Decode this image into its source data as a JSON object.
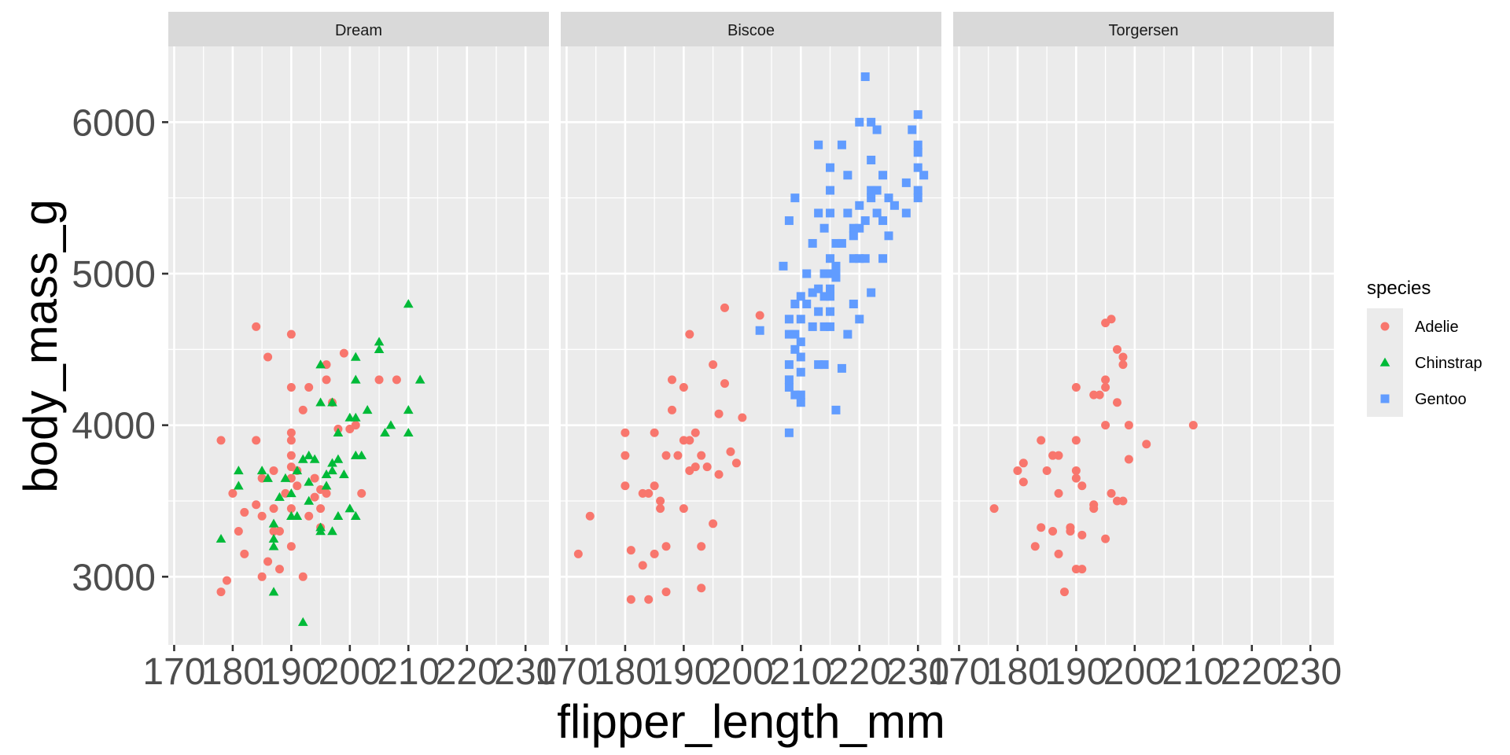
{
  "chart_data": {
    "type": "scatter",
    "facet_variable": "island",
    "panels": [
      "Dream",
      "Biscoe",
      "Torgersen"
    ],
    "xlabel": "flipper_length_mm",
    "ylabel": "body_mass_g",
    "xlim": [
      169,
      234
    ],
    "ylim": [
      2550,
      6500
    ],
    "x_ticks": [
      170,
      180,
      190,
      200,
      210,
      220,
      230
    ],
    "x_tick_labels": [
      "170",
      "180",
      "190",
      "200",
      "210",
      "220",
      "230"
    ],
    "y_ticks": [
      3000,
      4000,
      5000,
      6000
    ],
    "y_tick_labels": [
      "3000",
      "4000",
      "5000",
      "6000"
    ],
    "grid": true,
    "legend": {
      "title": "species",
      "position": "right",
      "entries": [
        {
          "name": "Adelie",
          "color": "#F8766D",
          "shape": "circle"
        },
        {
          "name": "Chinstrap",
          "color": "#00BA38",
          "shape": "triangle"
        },
        {
          "name": "Gentoo",
          "color": "#619CFF",
          "shape": "square"
        }
      ]
    },
    "series": [
      {
        "name": "Adelie",
        "panel": "Dream",
        "points": [
          [
            178,
            3900
          ],
          [
            178,
            2900
          ],
          [
            179,
            2975
          ],
          [
            180,
            3550
          ],
          [
            181,
            3300
          ],
          [
            182,
            3150
          ],
          [
            182,
            3425
          ],
          [
            184,
            4650
          ],
          [
            184,
            3900
          ],
          [
            184,
            3475
          ],
          [
            185,
            3650
          ],
          [
            185,
            3400
          ],
          [
            185,
            3000
          ],
          [
            186,
            4450
          ],
          [
            186,
            3100
          ],
          [
            187,
            3700
          ],
          [
            187,
            3450
          ],
          [
            187,
            3300
          ],
          [
            188,
            3050
          ],
          [
            188,
            3300
          ],
          [
            189,
            3550
          ],
          [
            190,
            3950
          ],
          [
            190,
            3650
          ],
          [
            190,
            3450
          ],
          [
            190,
            4600
          ],
          [
            190,
            4250
          ],
          [
            190,
            3900
          ],
          [
            190,
            3725
          ],
          [
            190,
            3800
          ],
          [
            190,
            3200
          ],
          [
            191,
            3700
          ],
          [
            191,
            3600
          ],
          [
            192,
            3000
          ],
          [
            192,
            4100
          ],
          [
            193,
            4250
          ],
          [
            193,
            3400
          ],
          [
            194,
            3650
          ],
          [
            194,
            3525
          ],
          [
            195,
            3450
          ],
          [
            195,
            3325
          ],
          [
            195,
            3575
          ],
          [
            196,
            4400
          ],
          [
            196,
            4300
          ],
          [
            196,
            3550
          ],
          [
            197,
            4150
          ],
          [
            198,
            3975
          ],
          [
            199,
            4475
          ],
          [
            200,
            3975
          ],
          [
            201,
            4000
          ],
          [
            202,
            3550
          ],
          [
            205,
            4300
          ],
          [
            208,
            4300
          ]
        ]
      },
      {
        "name": "Chinstrap",
        "panel": "Dream",
        "points": [
          [
            178,
            3250
          ],
          [
            181,
            3600
          ],
          [
            181,
            3700
          ],
          [
            185,
            3700
          ],
          [
            186,
            3650
          ],
          [
            187,
            3350
          ],
          [
            187,
            3250
          ],
          [
            187,
            3200
          ],
          [
            187,
            2900
          ],
          [
            188,
            3525
          ],
          [
            189,
            3650
          ],
          [
            190,
            3400
          ],
          [
            190,
            3550
          ],
          [
            191,
            3400
          ],
          [
            191,
            3700
          ],
          [
            192,
            3775
          ],
          [
            192,
            2700
          ],
          [
            193,
            3800
          ],
          [
            193,
            3625
          ],
          [
            193,
            3500
          ],
          [
            194,
            3775
          ],
          [
            195,
            4400
          ],
          [
            195,
            3300
          ],
          [
            195,
            3325
          ],
          [
            195,
            4150
          ],
          [
            196,
            3675
          ],
          [
            196,
            3600
          ],
          [
            197,
            3300
          ],
          [
            197,
            3750
          ],
          [
            197,
            3700
          ],
          [
            197,
            4150
          ],
          [
            198,
            3950
          ],
          [
            198,
            3400
          ],
          [
            198,
            3775
          ],
          [
            199,
            3675
          ],
          [
            200,
            4050
          ],
          [
            200,
            3450
          ],
          [
            201,
            4450
          ],
          [
            201,
            4300
          ],
          [
            201,
            4050
          ],
          [
            201,
            3800
          ],
          [
            201,
            3400
          ],
          [
            202,
            3800
          ],
          [
            203,
            4100
          ],
          [
            205,
            4550
          ],
          [
            205,
            4500
          ],
          [
            206,
            3950
          ],
          [
            207,
            4000
          ],
          [
            210,
            4800
          ],
          [
            210,
            4100
          ],
          [
            210,
            3950
          ],
          [
            212,
            4300
          ]
        ]
      },
      {
        "name": "Adelie",
        "panel": "Biscoe",
        "points": [
          [
            172,
            3150
          ],
          [
            174,
            3400
          ],
          [
            180,
            3950
          ],
          [
            180,
            3800
          ],
          [
            180,
            3600
          ],
          [
            181,
            3175
          ],
          [
            181,
            2850
          ],
          [
            183,
            3075
          ],
          [
            183,
            3550
          ],
          [
            184,
            2850
          ],
          [
            184,
            3550
          ],
          [
            185,
            3600
          ],
          [
            185,
            3150
          ],
          [
            185,
            3950
          ],
          [
            186,
            3500
          ],
          [
            186,
            3450
          ],
          [
            187,
            3800
          ],
          [
            187,
            3200
          ],
          [
            187,
            2900
          ],
          [
            188,
            4300
          ],
          [
            188,
            4100
          ],
          [
            189,
            3800
          ],
          [
            190,
            4250
          ],
          [
            190,
            3900
          ],
          [
            190,
            3450
          ],
          [
            191,
            4600
          ],
          [
            191,
            3900
          ],
          [
            191,
            3700
          ],
          [
            192,
            3725
          ],
          [
            192,
            3950
          ],
          [
            193,
            2925
          ],
          [
            193,
            3200
          ],
          [
            193,
            3800
          ],
          [
            194,
            3725
          ],
          [
            195,
            4400
          ],
          [
            195,
            3350
          ],
          [
            196,
            3675
          ],
          [
            196,
            4075
          ],
          [
            197,
            4775
          ],
          [
            197,
            4275
          ],
          [
            198,
            3825
          ],
          [
            199,
            3750
          ],
          [
            200,
            4050
          ],
          [
            203,
            4725
          ]
        ]
      },
      {
        "name": "Gentoo",
        "panel": "Biscoe",
        "points": [
          [
            203,
            4625
          ],
          [
            207,
            5050
          ],
          [
            208,
            4250
          ],
          [
            208,
            4300
          ],
          [
            208,
            4400
          ],
          [
            208,
            4600
          ],
          [
            208,
            4700
          ],
          [
            208,
            5350
          ],
          [
            208,
            3950
          ],
          [
            209,
            5500
          ],
          [
            209,
            4600
          ],
          [
            209,
            4500
          ],
          [
            209,
            4200
          ],
          [
            209,
            4800
          ],
          [
            210,
            4150
          ],
          [
            210,
            4350
          ],
          [
            210,
            4450
          ],
          [
            210,
            4700
          ],
          [
            210,
            4850
          ],
          [
            210,
            4200
          ],
          [
            210,
            4550
          ],
          [
            211,
            5000
          ],
          [
            211,
            4800
          ],
          [
            212,
            4875
          ],
          [
            212,
            4650
          ],
          [
            212,
            5200
          ],
          [
            213,
            4900
          ],
          [
            213,
            4750
          ],
          [
            213,
            5850
          ],
          [
            213,
            5400
          ],
          [
            213,
            4400
          ],
          [
            214,
            5000
          ],
          [
            214,
            4650
          ],
          [
            214,
            5300
          ],
          [
            214,
            4850
          ],
          [
            214,
            4400
          ],
          [
            215,
            4850
          ],
          [
            215,
            5000
          ],
          [
            215,
            5700
          ],
          [
            215,
            5400
          ],
          [
            215,
            4750
          ],
          [
            215,
            5550
          ],
          [
            215,
            5100
          ],
          [
            215,
            4650
          ],
          [
            215,
            4900
          ],
          [
            216,
            5050
          ],
          [
            216,
            4975
          ],
          [
            216,
            4100
          ],
          [
            216,
            5000
          ],
          [
            216,
            5200
          ],
          [
            217,
            5850
          ],
          [
            217,
            4375
          ],
          [
            217,
            5200
          ],
          [
            218,
            5400
          ],
          [
            218,
            4600
          ],
          [
            218,
            5650
          ],
          [
            219,
            4800
          ],
          [
            219,
            5300
          ],
          [
            219,
            5100
          ],
          [
            219,
            5250
          ],
          [
            220,
            6000
          ],
          [
            220,
            4700
          ],
          [
            220,
            5300
          ],
          [
            220,
            5450
          ],
          [
            220,
            5100
          ],
          [
            221,
            6300
          ],
          [
            221,
            5100
          ],
          [
            221,
            5350
          ],
          [
            222,
            6000
          ],
          [
            222,
            5750
          ],
          [
            222,
            4875
          ],
          [
            222,
            5550
          ],
          [
            222,
            5500
          ],
          [
            223,
            5950
          ],
          [
            223,
            5550
          ],
          [
            223,
            5400
          ],
          [
            224,
            5100
          ],
          [
            224,
            5350
          ],
          [
            224,
            5650
          ],
          [
            225,
            5250
          ],
          [
            225,
            5500
          ],
          [
            226,
            5450
          ],
          [
            228,
            5600
          ],
          [
            228,
            5400
          ],
          [
            229,
            5950
          ],
          [
            230,
            5800
          ],
          [
            230,
            6050
          ],
          [
            230,
            5700
          ],
          [
            230,
            5550
          ],
          [
            230,
            5500
          ],
          [
            230,
            5850
          ],
          [
            231,
            5650
          ]
        ]
      },
      {
        "name": "Adelie",
        "panel": "Torgersen",
        "points": [
          [
            176,
            3450
          ],
          [
            180,
            3700
          ],
          [
            181,
            3750
          ],
          [
            181,
            3625
          ],
          [
            183,
            3200
          ],
          [
            184,
            3900
          ],
          [
            184,
            3325
          ],
          [
            185,
            3700
          ],
          [
            186,
            3800
          ],
          [
            186,
            3300
          ],
          [
            187,
            3150
          ],
          [
            187,
            3800
          ],
          [
            187,
            3550
          ],
          [
            188,
            2900
          ],
          [
            189,
            3325
          ],
          [
            189,
            3300
          ],
          [
            190,
            4250
          ],
          [
            190,
            3900
          ],
          [
            190,
            3700
          ],
          [
            190,
            3650
          ],
          [
            190,
            3050
          ],
          [
            191,
            3050
          ],
          [
            191,
            3600
          ],
          [
            191,
            3275
          ],
          [
            193,
            3475
          ],
          [
            193,
            3450
          ],
          [
            193,
            4200
          ],
          [
            194,
            4200
          ],
          [
            195,
            4250
          ],
          [
            195,
            4300
          ],
          [
            195,
            4675
          ],
          [
            195,
            4000
          ],
          [
            195,
            3250
          ],
          [
            196,
            3550
          ],
          [
            196,
            4700
          ],
          [
            197,
            3500
          ],
          [
            197,
            4500
          ],
          [
            197,
            4150
          ],
          [
            198,
            4450
          ],
          [
            198,
            3500
          ],
          [
            198,
            4400
          ],
          [
            199,
            4000
          ],
          [
            199,
            3775
          ],
          [
            202,
            3875
          ],
          [
            210,
            4000
          ]
        ]
      }
    ]
  }
}
